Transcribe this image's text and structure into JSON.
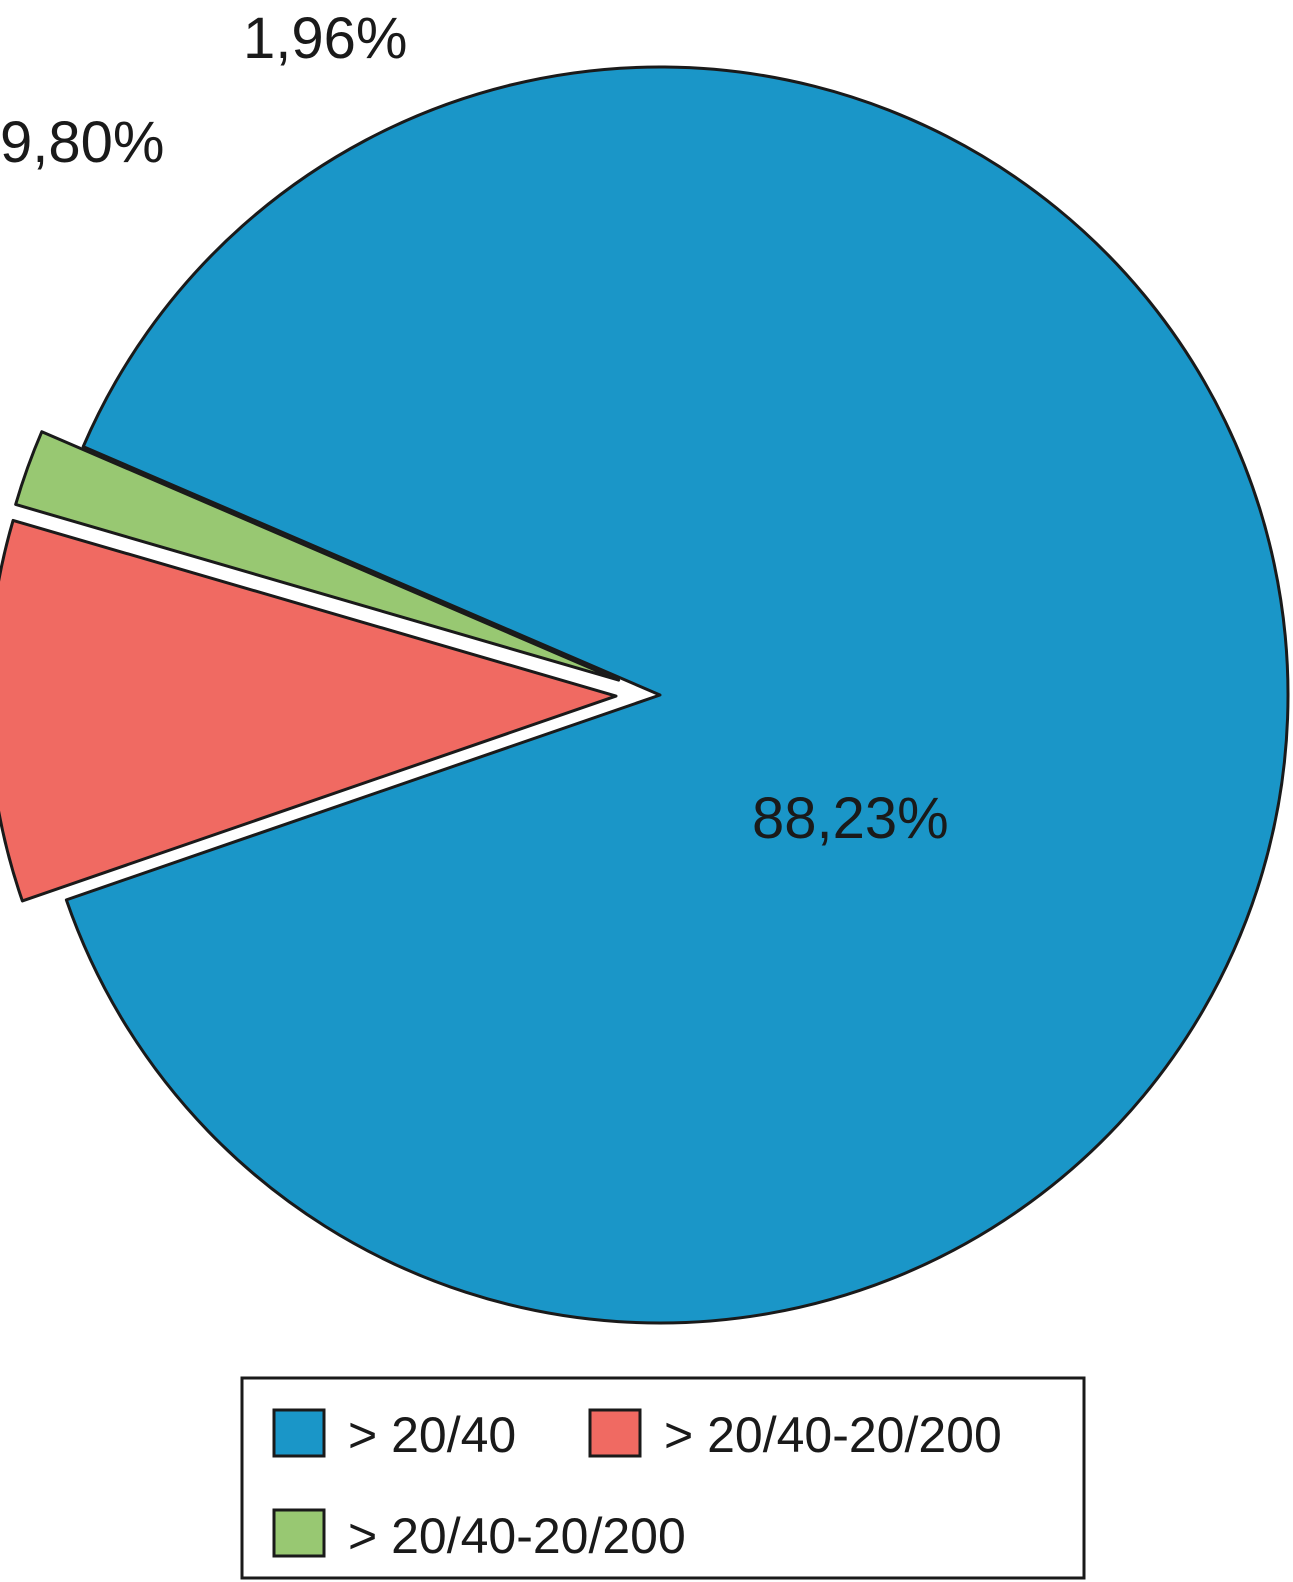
{
  "chart_data": {
    "type": "pie",
    "title": "",
    "slices": [
      {
        "label": "> 20/40",
        "value": 88.23,
        "display": "88,23%",
        "color": "#1a96c8",
        "exploded": false
      },
      {
        "label": "> 20/40-20/200",
        "value": 9.8,
        "display": "9,80%",
        "color": "#f06a62",
        "exploded": true
      },
      {
        "label": "> 20/40-20/200",
        "value": 1.96,
        "display": "1,96%",
        "color": "#98c872",
        "exploded": true
      }
    ],
    "legend": {
      "position": "bottom",
      "entries": [
        {
          "label": "> 20/40",
          "color": "#1a96c8"
        },
        {
          "label": "> 20/40-20/200",
          "color": "#f06a62"
        },
        {
          "label": "> 20/40-20/200",
          "color": "#98c872"
        }
      ]
    }
  }
}
